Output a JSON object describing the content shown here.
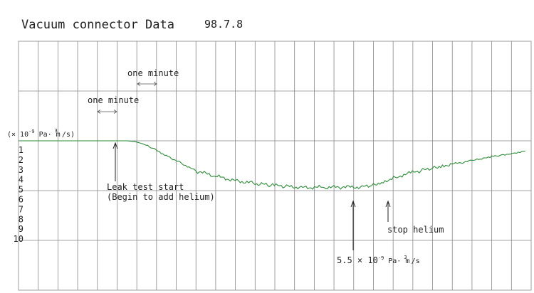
{
  "chart_data": {
    "type": "line",
    "title": "Vacuum connector Data",
    "date": "98.7.8",
    "y_unit": {
      "prefix": "(× 10",
      "exponent": "-9",
      "middle": " Pa· m",
      "cube": "3",
      "suffix": " /s)"
    },
    "y_ticks": [
      "1",
      "2",
      "3",
      "4",
      "5",
      "6",
      "7",
      "8",
      "9",
      "10"
    ],
    "ylim": [
      10,
      1
    ],
    "grid": true,
    "series": [
      {
        "color": "#2e8b3a",
        "x_minutes": [
          0,
          5.5,
          5.9,
          6.3,
          6.8,
          7.5,
          8.3,
          9.0,
          10.0,
          11.0,
          12.0,
          12.8,
          13.5,
          14.5,
          15.5,
          16.5,
          17.5,
          18.0,
          18.5,
          19.2,
          19.8,
          20.5,
          21.0,
          21.5,
          22.5,
          23.0,
          23.5,
          24.0,
          24.5,
          25.0,
          25.7
        ],
        "values": [
          1.0,
          1.0,
          1.08,
          1.3,
          1.75,
          2.5,
          3.3,
          4.05,
          4.6,
          5.0,
          5.32,
          5.5,
          5.62,
          5.7,
          5.72,
          5.7,
          5.65,
          5.45,
          5.1,
          4.6,
          4.3,
          4.0,
          3.75,
          3.5,
          3.2,
          3.0,
          2.85,
          2.6,
          2.45,
          2.25,
          2.05
        ]
      }
    ],
    "annotations": {
      "one_minute_1": "one minute",
      "one_minute_2": "one minute",
      "leak_test_line1": "Leak test start",
      "leak_test_line2": "(Begin to add helium)",
      "stop_helium": "stop helium",
      "min_value": {
        "prefix": "5.5 × 10",
        "exponent": "-9",
        "middle": " Pa· m",
        "cube": "3",
        "suffix": " /s"
      }
    }
  }
}
